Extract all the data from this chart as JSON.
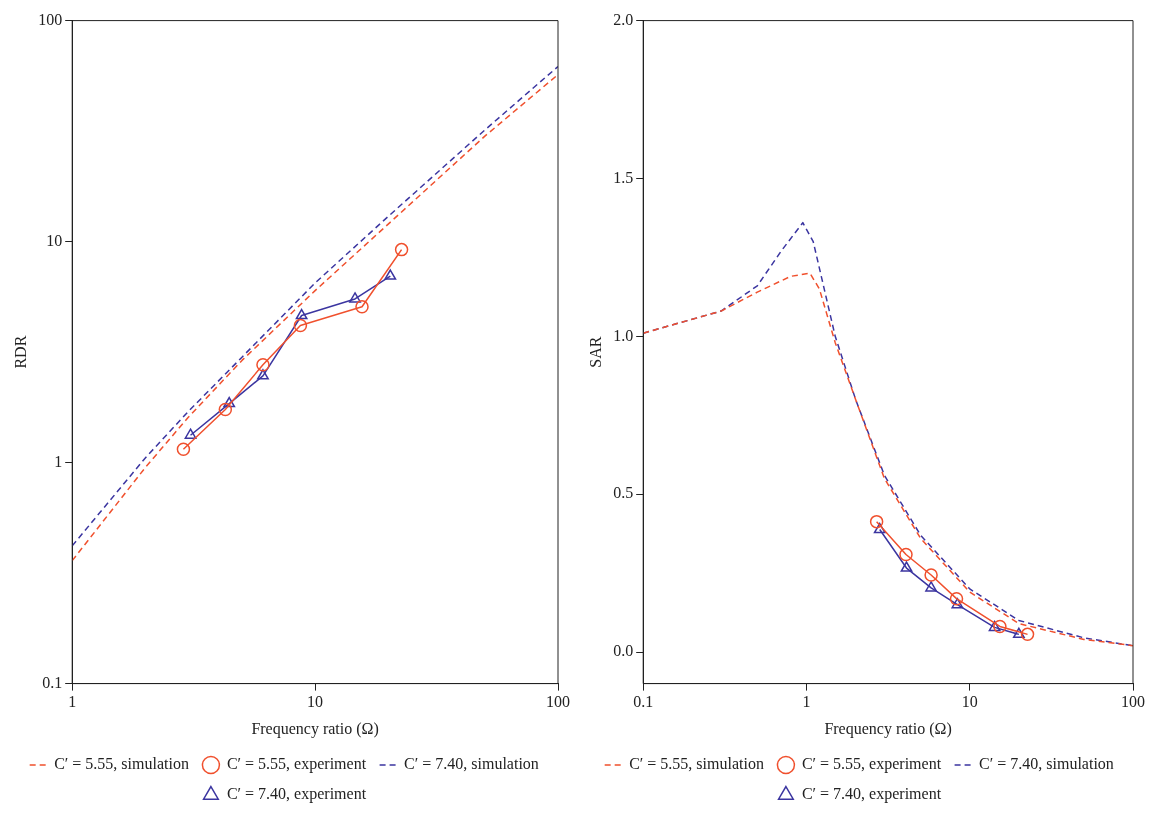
{
  "chart_data": [
    {
      "type": "line",
      "xlabel": "Frequency ratio (Ω)",
      "ylabel": "RDR",
      "log": "xy",
      "xlim": [
        1,
        100
      ],
      "ylim": [
        0.1,
        100
      ],
      "xticks": [
        1,
        10,
        100
      ],
      "yticks": [
        0.1,
        1,
        10,
        100
      ],
      "grid": false,
      "legend": "bottom",
      "series": [
        {
          "name": "C′ = 5.55, simulation",
          "color": "#f0502d",
          "marker": "none",
          "line_style": "dashed",
          "x": [
            1,
            2,
            3,
            5,
            10,
            20,
            50,
            100
          ],
          "values": [
            0.36,
            0.95,
            1.6,
            2.9,
            6.0,
            12,
            30,
            57
          ]
        },
        {
          "name": "C′ = 5.55, experiment",
          "color": "#f0502d",
          "marker": "circle",
          "line_style": "solid",
          "x": [
            2.87,
            4.27,
            6.1,
            8.7,
            15.6,
            22.7
          ],
          "values": [
            1.15,
            1.74,
            2.77,
            4.17,
            5.07,
            9.2
          ]
        },
        {
          "name": "C′ = 7.40, simulation",
          "color": "#3b35a0",
          "marker": "none",
          "line_style": "dashed",
          "x": [
            1,
            2,
            3,
            5,
            10,
            20,
            50,
            100
          ],
          "values": [
            0.42,
            1.05,
            1.7,
            3.0,
            6.5,
            13,
            32,
            62
          ]
        },
        {
          "name": "C′ = 7.40, experiment",
          "color": "#3b35a0",
          "marker": "triangle",
          "line_style": "solid",
          "x": [
            3.07,
            4.43,
            6.1,
            8.8,
            14.6,
            20.4
          ],
          "values": [
            1.33,
            1.85,
            2.47,
            4.63,
            5.5,
            6.98
          ]
        }
      ]
    },
    {
      "type": "line",
      "xlabel": "Frequency ratio (Ω)",
      "ylabel": "SAR",
      "log": "x",
      "xlim": [
        0.1,
        100
      ],
      "ylim": [
        -0.1,
        2.0
      ],
      "xticks": [
        0.1,
        1,
        10,
        100
      ],
      "yticks": [
        {
          "value": 0,
          "label": "0.0"
        },
        {
          "value": 0.5,
          "label": "0.5"
        },
        {
          "value": 1,
          "label": "1.0"
        },
        {
          "value": 1.5,
          "label": "1.5"
        },
        {
          "value": 2,
          "label": "2.0"
        }
      ],
      "grid": false,
      "legend": "bottom",
      "series": [
        {
          "name": "C′ = 5.55, simulation",
          "color": "#f0502d",
          "marker": "none",
          "line_style": "dashed",
          "x": [
            0.1,
            0.3,
            0.5,
            0.8,
            1.05,
            1.2,
            1.5,
            2,
            3,
            5,
            10,
            20,
            50,
            100
          ],
          "values": [
            1.01,
            1.08,
            1.14,
            1.19,
            1.2,
            1.15,
            0.98,
            0.8,
            0.55,
            0.36,
            0.19,
            0.09,
            0.04,
            0.02
          ]
        },
        {
          "name": "C′ = 5.55, experiment",
          "color": "#f0502d",
          "marker": "circle",
          "line_style": "solid",
          "x": [
            2.69,
            4.07,
            5.8,
            8.3,
            15.3,
            22.6
          ],
          "values": [
            0.413,
            0.309,
            0.244,
            0.169,
            0.081,
            0.056
          ]
        },
        {
          "name": "C′ = 7.40, simulation",
          "color": "#3b35a0",
          "marker": "none",
          "line_style": "dashed",
          "x": [
            0.1,
            0.3,
            0.5,
            0.7,
            0.95,
            1.1,
            1.5,
            2,
            3,
            5,
            10,
            20,
            50,
            100
          ],
          "values": [
            1.01,
            1.08,
            1.16,
            1.27,
            1.36,
            1.3,
            1.0,
            0.8,
            0.56,
            0.37,
            0.2,
            0.1,
            0.045,
            0.02
          ]
        },
        {
          "name": "C′ = 7.40, experiment",
          "color": "#3b35a0",
          "marker": "triangle",
          "line_style": "solid",
          "x": [
            2.81,
            4.1,
            5.8,
            8.4,
            14.2,
            20
          ],
          "values": [
            0.388,
            0.266,
            0.203,
            0.15,
            0.078,
            0.056
          ]
        }
      ]
    }
  ]
}
